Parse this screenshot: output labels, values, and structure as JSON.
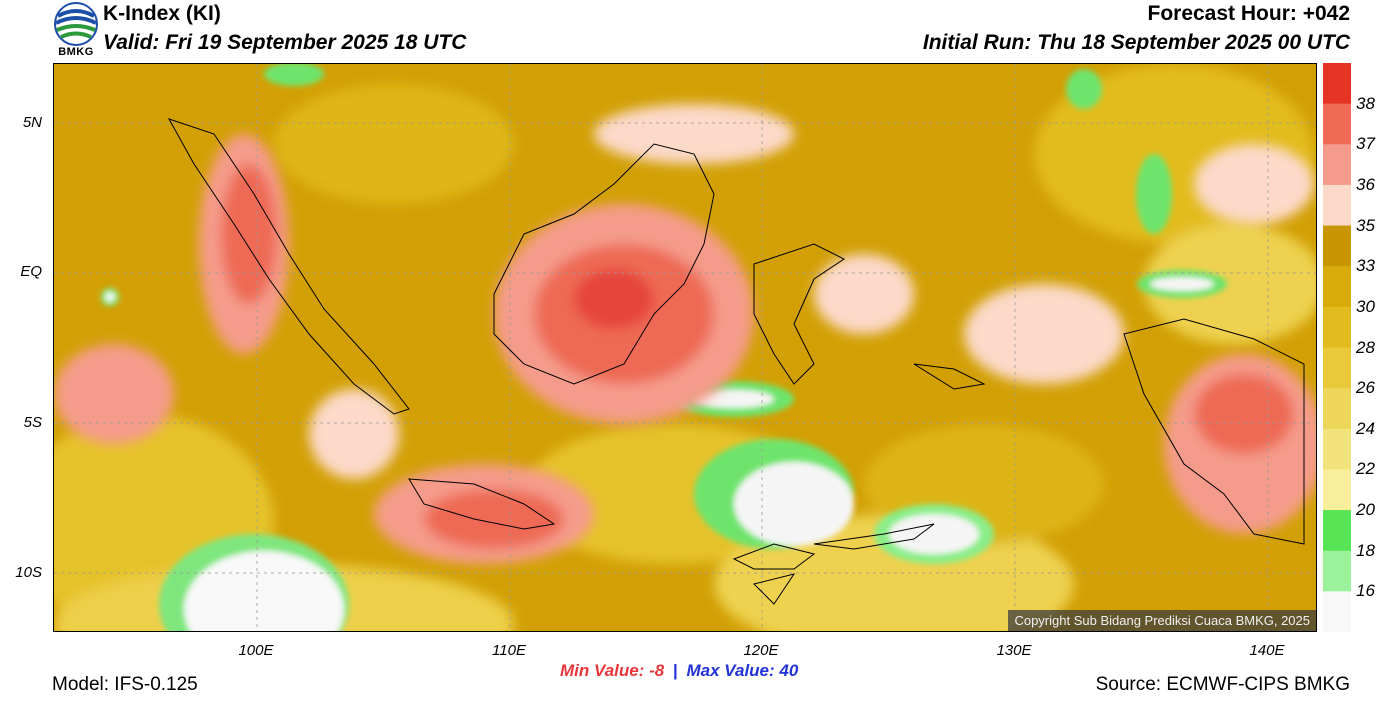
{
  "header": {
    "title": "K-Index (KI)",
    "valid": "Valid: Fri 19 September 2025 18 UTC",
    "forecast_hour": "Forecast Hour: +042",
    "initial_run": "Initial Run: Thu 18 September 2025 00 UTC",
    "logo_text": "BMKG"
  },
  "map": {
    "lat_labels": [
      "5N",
      "EQ",
      "5S",
      "10S"
    ],
    "lon_labels": [
      "100E",
      "110E",
      "120E",
      "130E",
      "140E"
    ],
    "copyright": "Copyright Sub Bidang Prediksi Cuaca BMKG, 2025"
  },
  "colorbar": {
    "labels": [
      "38",
      "37",
      "36",
      "35",
      "33",
      "30",
      "28",
      "26",
      "24",
      "22",
      "20",
      "18",
      "16"
    ],
    "colors": [
      "#e53424",
      "#ee6a55",
      "#f59b8b",
      "#fcd9c9",
      "#c99500",
      "#d8aa0a",
      "#e2bb1e",
      "#e9c93a",
      "#eed65a",
      "#f2e27c",
      "#f8ee9c",
      "#57e455",
      "#9af39a",
      "#f8f8f8"
    ]
  },
  "footer": {
    "min_label": "Min Value:",
    "min_value": "-8",
    "separator": "|",
    "max_label": "Max Value:",
    "max_value": "40",
    "model": "Model: IFS-0.125",
    "source": "Source: ECMWF-CIPS BMKG"
  }
}
